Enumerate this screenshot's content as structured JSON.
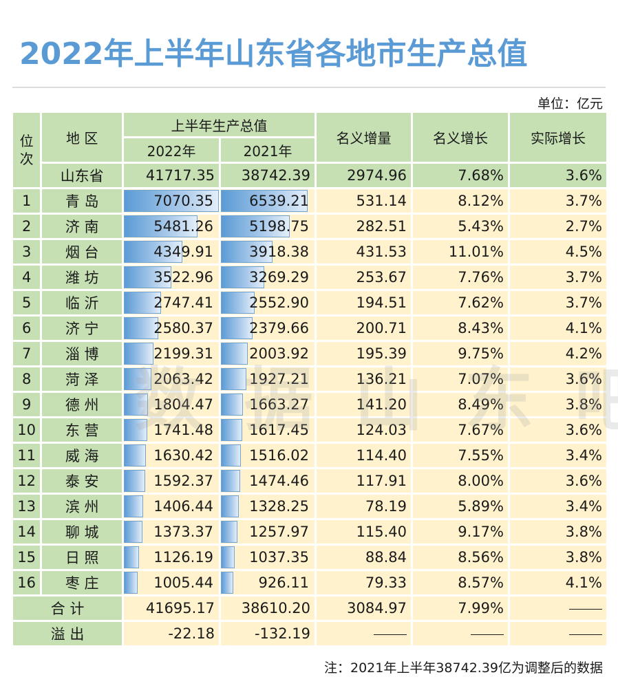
{
  "title": "2022年上半年山东省各地市生产总值",
  "unit_label": "单位：亿元",
  "note": "注：2021年上半年38742.39亿为调整后的数据",
  "watermark": "数据山东吧",
  "colors": {
    "title": "#5b9bd5",
    "header_bg": "#c6e0b4",
    "data_bg": "#fff2cc",
    "bar": "#5b9bd5"
  },
  "headers": {
    "rank": "位次",
    "region": "地 区",
    "gdp_group": "上半年生产总值",
    "year_2022": "2022年",
    "year_2021": "2021年",
    "nominal_increase": "名义增量",
    "nominal_growth": "名义增长",
    "real_growth": "实际增长"
  },
  "province": {
    "name": "山东省",
    "gdp_2022": "41717.35",
    "gdp_2021": "38742.39",
    "increase": "2974.96",
    "nominal_growth": "7.68%",
    "real_growth": "3.6%"
  },
  "bar_max": 7070.35,
  "rows": [
    {
      "rank": "1",
      "city": "青 岛",
      "gdp_2022": "7070.35",
      "gdp_2021": "6539.21",
      "increase": "531.14",
      "nominal_growth": "8.12%",
      "real_growth": "3.7%"
    },
    {
      "rank": "2",
      "city": "济 南",
      "gdp_2022": "5481.26",
      "gdp_2021": "5198.75",
      "increase": "282.51",
      "nominal_growth": "5.43%",
      "real_growth": "2.7%"
    },
    {
      "rank": "3",
      "city": "烟 台",
      "gdp_2022": "4349.91",
      "gdp_2021": "3918.38",
      "increase": "431.53",
      "nominal_growth": "11.01%",
      "real_growth": "4.5%"
    },
    {
      "rank": "4",
      "city": "潍 坊",
      "gdp_2022": "3522.96",
      "gdp_2021": "3269.29",
      "increase": "253.67",
      "nominal_growth": "7.76%",
      "real_growth": "3.7%"
    },
    {
      "rank": "5",
      "city": "临 沂",
      "gdp_2022": "2747.41",
      "gdp_2021": "2552.90",
      "increase": "194.51",
      "nominal_growth": "7.62%",
      "real_growth": "3.7%"
    },
    {
      "rank": "6",
      "city": "济 宁",
      "gdp_2022": "2580.37",
      "gdp_2021": "2379.66",
      "increase": "200.71",
      "nominal_growth": "8.43%",
      "real_growth": "4.1%"
    },
    {
      "rank": "7",
      "city": "淄 博",
      "gdp_2022": "2199.31",
      "gdp_2021": "2003.92",
      "increase": "195.39",
      "nominal_growth": "9.75%",
      "real_growth": "4.2%"
    },
    {
      "rank": "8",
      "city": "菏 泽",
      "gdp_2022": "2063.42",
      "gdp_2021": "1927.21",
      "increase": "136.21",
      "nominal_growth": "7.07%",
      "real_growth": "3.6%"
    },
    {
      "rank": "9",
      "city": "德 州",
      "gdp_2022": "1804.47",
      "gdp_2021": "1663.27",
      "increase": "141.20",
      "nominal_growth": "8.49%",
      "real_growth": "3.8%"
    },
    {
      "rank": "10",
      "city": "东 营",
      "gdp_2022": "1741.48",
      "gdp_2021": "1617.45",
      "increase": "124.03",
      "nominal_growth": "7.67%",
      "real_growth": "3.6%"
    },
    {
      "rank": "11",
      "city": "威 海",
      "gdp_2022": "1630.42",
      "gdp_2021": "1516.02",
      "increase": "114.40",
      "nominal_growth": "7.55%",
      "real_growth": "3.4%"
    },
    {
      "rank": "12",
      "city": "泰 安",
      "gdp_2022": "1592.37",
      "gdp_2021": "1474.46",
      "increase": "117.91",
      "nominal_growth": "8.00%",
      "real_growth": "3.6%"
    },
    {
      "rank": "13",
      "city": "滨 州",
      "gdp_2022": "1406.44",
      "gdp_2021": "1328.25",
      "increase": "78.19",
      "nominal_growth": "5.89%",
      "real_growth": "3.4%"
    },
    {
      "rank": "14",
      "city": "聊 城",
      "gdp_2022": "1373.37",
      "gdp_2021": "1257.97",
      "increase": "115.40",
      "nominal_growth": "9.17%",
      "real_growth": "3.8%"
    },
    {
      "rank": "15",
      "city": "日 照",
      "gdp_2022": "1126.19",
      "gdp_2021": "1037.35",
      "increase": "88.84",
      "nominal_growth": "8.56%",
      "real_growth": "3.8%"
    },
    {
      "rank": "16",
      "city": "枣 庄",
      "gdp_2022": "1005.44",
      "gdp_2021": "926.11",
      "increase": "79.33",
      "nominal_growth": "8.57%",
      "real_growth": "4.1%"
    }
  ],
  "total": {
    "label": "合 计",
    "gdp_2022": "41695.17",
    "gdp_2021": "38610.20",
    "increase": "3084.97",
    "nominal_growth": "7.99%",
    "real_growth": "——"
  },
  "overflow": {
    "label": "溢 出",
    "gdp_2022": "-22.18",
    "gdp_2021": "-132.19",
    "increase": "——",
    "nominal_growth": "——",
    "real_growth": "——"
  }
}
